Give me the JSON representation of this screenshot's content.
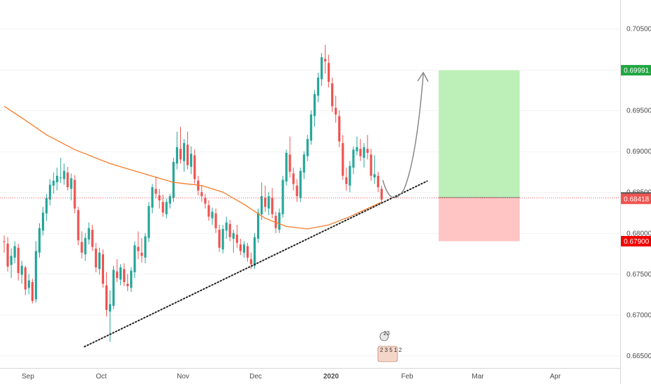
{
  "chart_data": {
    "type": "candlestick",
    "price_axis": {
      "ticks": [
        "0.70500",
        "0.70000",
        "0.69500",
        "0.69000",
        "0.68500",
        "0.68000",
        "0.67500",
        "0.67000",
        "0.66500"
      ],
      "range": [
        0.6635,
        0.7085
      ]
    },
    "time_axis": {
      "labels": [
        "Sep",
        "Oct",
        "Nov",
        "Dec",
        "2020",
        "Feb",
        "Mar",
        "Apr"
      ],
      "bold_label": "2020"
    },
    "price_badges": [
      {
        "label": "0.69991",
        "value": 0.69991,
        "color": "#21a642"
      },
      {
        "label": "0.68435",
        "value": 0.68435,
        "color": "#555555"
      },
      {
        "label": "0.68418",
        "value": 0.68418,
        "color": "#ef5350"
      },
      {
        "label": "0.67900",
        "value": 0.679,
        "color": "#f20000"
      }
    ],
    "current_price_line": 0.68435,
    "candles": [
      [
        0.679,
        0.6797,
        0.6776,
        0.6789
      ],
      [
        0.6787,
        0.6795,
        0.6753,
        0.6759
      ],
      [
        0.6761,
        0.6781,
        0.6745,
        0.6772
      ],
      [
        0.677,
        0.679,
        0.6763,
        0.6784
      ],
      [
        0.6782,
        0.6787,
        0.6742,
        0.6751
      ],
      [
        0.6749,
        0.6766,
        0.6738,
        0.676
      ],
      [
        0.6758,
        0.676,
        0.6724,
        0.6731
      ],
      [
        0.6733,
        0.675,
        0.6725,
        0.6742
      ],
      [
        0.674,
        0.6744,
        0.6714,
        0.6717
      ],
      [
        0.6719,
        0.679,
        0.6715,
        0.6778
      ],
      [
        0.6776,
        0.6812,
        0.677,
        0.6806
      ],
      [
        0.6803,
        0.6832,
        0.6797,
        0.6825
      ],
      [
        0.6824,
        0.6848,
        0.6815,
        0.6843
      ],
      [
        0.6841,
        0.6866,
        0.6834,
        0.6859
      ],
      [
        0.6858,
        0.6874,
        0.6848,
        0.6864
      ],
      [
        0.6862,
        0.688,
        0.6852,
        0.687
      ],
      [
        0.6868,
        0.6892,
        0.6861,
        0.6868
      ],
      [
        0.6866,
        0.6885,
        0.6859,
        0.6876
      ],
      [
        0.6874,
        0.6881,
        0.6852,
        0.6856
      ],
      [
        0.6854,
        0.6873,
        0.684,
        0.6867
      ],
      [
        0.6865,
        0.6871,
        0.6824,
        0.683
      ],
      [
        0.6828,
        0.6832,
        0.6785,
        0.6791
      ],
      [
        0.6789,
        0.6802,
        0.6769,
        0.6776
      ],
      [
        0.6774,
        0.68,
        0.6766,
        0.6794
      ],
      [
        0.6792,
        0.6813,
        0.6786,
        0.6806
      ],
      [
        0.6804,
        0.681,
        0.6778,
        0.6783
      ],
      [
        0.6781,
        0.6788,
        0.6752,
        0.6758
      ],
      [
        0.6756,
        0.6782,
        0.6749,
        0.6776
      ],
      [
        0.6774,
        0.678,
        0.6733,
        0.6738
      ],
      [
        0.6736,
        0.6752,
        0.6698,
        0.6706
      ],
      [
        0.6704,
        0.673,
        0.6667,
        0.6713
      ],
      [
        0.6711,
        0.676,
        0.6707,
        0.6755
      ],
      [
        0.6753,
        0.6768,
        0.674,
        0.6745
      ],
      [
        0.6743,
        0.6762,
        0.6736,
        0.6758
      ],
      [
        0.6756,
        0.6763,
        0.6735,
        0.674
      ],
      [
        0.6738,
        0.675,
        0.6729,
        0.6735
      ],
      [
        0.6733,
        0.6758,
        0.6728,
        0.6754
      ],
      [
        0.6752,
        0.679,
        0.6745,
        0.6785
      ],
      [
        0.6783,
        0.6802,
        0.6768,
        0.6778
      ],
      [
        0.6776,
        0.6794,
        0.6764,
        0.6772
      ],
      [
        0.677,
        0.68,
        0.6763,
        0.6796
      ],
      [
        0.6794,
        0.6838,
        0.6789,
        0.6833
      ],
      [
        0.6831,
        0.686,
        0.6824,
        0.6856
      ],
      [
        0.6854,
        0.6869,
        0.6843,
        0.6848
      ],
      [
        0.6846,
        0.6854,
        0.683,
        0.684
      ],
      [
        0.6838,
        0.6847,
        0.682,
        0.6825
      ],
      [
        0.6823,
        0.6842,
        0.6818,
        0.6838
      ],
      [
        0.6836,
        0.6848,
        0.683,
        0.6845
      ],
      [
        0.6843,
        0.6892,
        0.6838,
        0.6887
      ],
      [
        0.6885,
        0.6924,
        0.6878,
        0.6905
      ],
      [
        0.6903,
        0.693,
        0.6885,
        0.689
      ],
      [
        0.6888,
        0.6915,
        0.6875,
        0.691
      ],
      [
        0.6908,
        0.6924,
        0.6878,
        0.6883
      ],
      [
        0.6881,
        0.6906,
        0.6872,
        0.6897
      ],
      [
        0.6895,
        0.6902,
        0.686,
        0.6866
      ],
      [
        0.6864,
        0.687,
        0.6846,
        0.6852
      ],
      [
        0.685,
        0.6858,
        0.6838,
        0.6845
      ],
      [
        0.6843,
        0.6848,
        0.683,
        0.6836
      ],
      [
        0.6834,
        0.684,
        0.6815,
        0.682
      ],
      [
        0.6818,
        0.6831,
        0.681,
        0.6826
      ],
      [
        0.6824,
        0.683,
        0.68,
        0.6806
      ],
      [
        0.6804,
        0.681,
        0.6777,
        0.6782
      ],
      [
        0.678,
        0.681,
        0.6775,
        0.6805
      ],
      [
        0.6803,
        0.682,
        0.6793,
        0.6813
      ],
      [
        0.6811,
        0.6816,
        0.679,
        0.6795
      ],
      [
        0.6793,
        0.6804,
        0.6776,
        0.68
      ],
      [
        0.6798,
        0.681,
        0.6782,
        0.6788
      ],
      [
        0.6786,
        0.6793,
        0.6773,
        0.6778
      ],
      [
        0.6776,
        0.679,
        0.677,
        0.6786
      ],
      [
        0.6784,
        0.6788,
        0.6765,
        0.677
      ],
      [
        0.6768,
        0.6776,
        0.6756,
        0.6762
      ],
      [
        0.676,
        0.68,
        0.6756,
        0.6795
      ],
      [
        0.6793,
        0.683,
        0.6788,
        0.6825
      ],
      [
        0.6823,
        0.6862,
        0.6816,
        0.6845
      ],
      [
        0.6843,
        0.6858,
        0.6826,
        0.6832
      ],
      [
        0.683,
        0.685,
        0.6822,
        0.6845
      ],
      [
        0.6843,
        0.6855,
        0.6818,
        0.6823
      ],
      [
        0.6821,
        0.6826,
        0.68,
        0.6806
      ],
      [
        0.6804,
        0.683,
        0.68,
        0.6825
      ],
      [
        0.6823,
        0.687,
        0.6819,
        0.6865
      ],
      [
        0.6863,
        0.6902,
        0.6858,
        0.6898
      ],
      [
        0.6896,
        0.6918,
        0.6868,
        0.6875
      ],
      [
        0.6873,
        0.688,
        0.6852,
        0.686
      ],
      [
        0.6858,
        0.6866,
        0.6838,
        0.6845
      ],
      [
        0.6843,
        0.688,
        0.6838,
        0.6876
      ],
      [
        0.6874,
        0.69,
        0.6866,
        0.6896
      ],
      [
        0.6894,
        0.692,
        0.6888,
        0.6915
      ],
      [
        0.6913,
        0.695,
        0.6908,
        0.6945
      ],
      [
        0.6943,
        0.6975,
        0.693,
        0.697
      ],
      [
        0.6968,
        0.6996,
        0.696,
        0.699
      ],
      [
        0.6988,
        0.702,
        0.698,
        0.7015
      ],
      [
        0.7013,
        0.703,
        0.6995,
        0.701
      ],
      [
        0.7008,
        0.7018,
        0.6978,
        0.6985
      ],
      [
        0.6983,
        0.699,
        0.6948,
        0.6955
      ],
      [
        0.6953,
        0.6968,
        0.6935,
        0.6945
      ],
      [
        0.6943,
        0.695,
        0.6905,
        0.6912
      ],
      [
        0.691,
        0.692,
        0.6865,
        0.687
      ],
      [
        0.6868,
        0.688,
        0.6852,
        0.686
      ],
      [
        0.6858,
        0.6888,
        0.685,
        0.6882
      ],
      [
        0.688,
        0.6906,
        0.6872,
        0.6902
      ],
      [
        0.69,
        0.6918,
        0.6895,
        0.6905
      ],
      [
        0.6903,
        0.6915,
        0.6888,
        0.6894
      ],
      [
        0.6892,
        0.691,
        0.688,
        0.6905
      ],
      [
        0.6903,
        0.692,
        0.689,
        0.6898
      ],
      [
        0.6896,
        0.6903,
        0.6864,
        0.687
      ],
      [
        0.6868,
        0.6895,
        0.686,
        0.6872
      ],
      [
        0.687,
        0.6875,
        0.685,
        0.6856
      ],
      [
        0.6854,
        0.6858,
        0.6838,
        0.6841
      ]
    ],
    "moving_average": {
      "color": "#f57c28",
      "points": [
        [
          0,
          0.6955
        ],
        [
          6,
          0.6938
        ],
        [
          12,
          0.692
        ],
        [
          20,
          0.6902
        ],
        [
          30,
          0.6885
        ],
        [
          40,
          0.6872
        ],
        [
          48,
          0.6862
        ],
        [
          56,
          0.6858
        ],
        [
          62,
          0.685
        ],
        [
          68,
          0.6835
        ],
        [
          74,
          0.6818
        ],
        [
          80,
          0.6808
        ],
        [
          86,
          0.6805
        ],
        [
          92,
          0.681
        ],
        [
          98,
          0.682
        ],
        [
          104,
          0.6832
        ],
        [
          107,
          0.6838
        ]
      ]
    },
    "trendline": {
      "from": [
        20,
        0.6661
      ],
      "to": [
        108,
        0.6853
      ],
      "extend_to_x": 110,
      "extend_to_y": 0.6855,
      "style": "dotted",
      "color": "#222222"
    },
    "long_position": {
      "entry": 0.68435,
      "target": 0.69991,
      "stop": 0.679,
      "profit_color": "#bdf0b8",
      "loss_color": "#ffc4c4"
    },
    "projection_arrow": {
      "color": "#888888"
    },
    "event_markers": [
      "23",
      "2 3 5 1 2"
    ]
  }
}
